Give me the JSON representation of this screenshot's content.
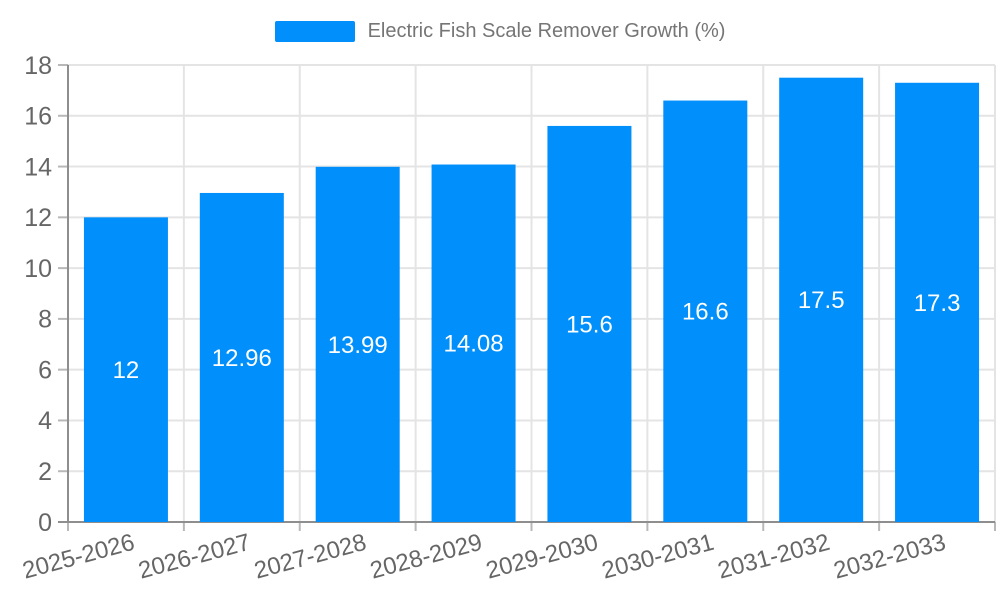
{
  "chart_data": {
    "type": "bar",
    "title": "Electric Fish Scale Remover Growth (%)",
    "legend_position": "top",
    "categories": [
      "2025-2026",
      "2026-2027",
      "2027-2028",
      "2028-2029",
      "2029-2030",
      "2030-2031",
      "2031-2032",
      "2032-2033"
    ],
    "series": [
      {
        "name": "Electric Fish Scale Remover Growth (%)",
        "values": [
          12,
          12.96,
          13.99,
          14.08,
          15.6,
          16.6,
          17.5,
          17.3
        ]
      }
    ],
    "data_labels": [
      "12",
      "12.96",
      "13.99",
      "14.08",
      "15.6",
      "16.6",
      "17.5",
      "17.3"
    ],
    "xlabel": "",
    "ylabel": "",
    "ylim": [
      0,
      18
    ],
    "ytick_step": 2,
    "yticks": [
      "0",
      "2",
      "4",
      "6",
      "8",
      "10",
      "12",
      "14",
      "16",
      "18"
    ],
    "grid": true,
    "colors": {
      "bar": "#008FFB",
      "grid": "#e4e4e4",
      "axis_line": "#8e8e8e",
      "tick_mark": "#b8b8b8",
      "axis_text": "#666666",
      "legend_text": "#757575",
      "data_label": "#ffffff",
      "background": "#ffffff"
    }
  }
}
